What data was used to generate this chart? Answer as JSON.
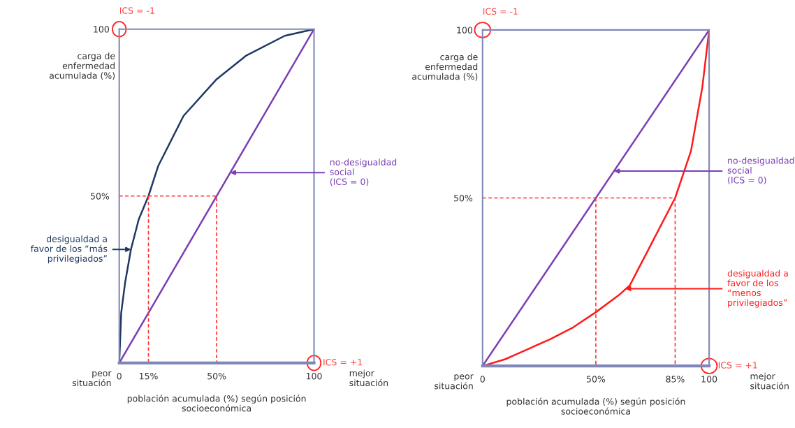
{
  "chart_data": [
    {
      "type": "line",
      "xlabel": "población acumulada (%) según posición\nsocioeconómica",
      "ylabel": "carga de\nenfermedad\nacumulada (%)",
      "xlim": [
        0,
        100
      ],
      "ylim": [
        0,
        100
      ],
      "xticks": [
        0,
        {
          "value": 15,
          "label": "15%"
        },
        {
          "value": 50,
          "label": "50%"
        },
        100
      ],
      "yticks": [
        {
          "value": 50,
          "label": "50%"
        },
        100
      ],
      "grid": false,
      "marker": "none",
      "series": [
        {
          "color": "#7b3fb5",
          "x": [
            0,
            100
          ],
          "values": [
            0,
            100
          ]
        },
        {
          "color": "#1f3864",
          "x": [
            0,
            1,
            3,
            6,
            10,
            15,
            20,
            33,
            50,
            65,
            85,
            100
          ],
          "values": [
            0,
            15,
            24,
            34,
            43,
            50,
            59,
            74,
            85,
            92,
            98,
            100
          ]
        },
        {
          "color": "#ff3333",
          "line_style": "dashed",
          "x": [
            0,
            50,
            50
          ],
          "values": [
            50,
            50,
            0
          ]
        },
        {
          "color": "#ff3333",
          "line_style": "dashed",
          "x": [
            15,
            15
          ],
          "values": [
            50,
            0
          ]
        }
      ],
      "annotations": [
        "peor situación",
        "mejor situación",
        {
          "text": "ICS = -1",
          "x": 0,
          "y": 100
        },
        {
          "text": "ICS = +1",
          "x": 100,
          "y": 0
        },
        {
          "text": "no-desigualdad\nsocial\n(ICS = 0)",
          "x": 57,
          "y": 57
        },
        {
          "text": "desigualdad a\nfavor de los “más\nprivilegiados”",
          "x": 6,
          "y": 34
        }
      ]
    },
    {
      "type": "line",
      "xlabel": "población acumulada (%) según posición\nsocioeconómica",
      "ylabel": "carga de\nenfermedad\nacumulada (%)",
      "xlim": [
        0,
        100
      ],
      "ylim": [
        0,
        100
      ],
      "xticks": [
        0,
        {
          "value": 50,
          "label": "50%"
        },
        {
          "value": 85,
          "label": "85%"
        },
        100
      ],
      "yticks": [
        {
          "value": 50,
          "label": "50%"
        },
        100
      ],
      "grid": false,
      "marker": "none",
      "series": [
        {
          "color": "#7b3fb5",
          "x": [
            0,
            100
          ],
          "values": [
            0,
            100
          ]
        },
        {
          "color": "#ff1a1a",
          "x": [
            0,
            10,
            20,
            30,
            40,
            50,
            60,
            65,
            75,
            85,
            92,
            97,
            100
          ],
          "values": [
            0,
            2,
            5,
            8,
            11.5,
            16,
            21,
            24,
            37,
            50,
            64,
            83,
            100
          ]
        },
        {
          "color": "#ff3333",
          "line_style": "dashed",
          "x": [
            0,
            85,
            85
          ],
          "values": [
            50,
            50,
            0
          ]
        },
        {
          "color": "#ff3333",
          "line_style": "dashed",
          "x": [
            50,
            50
          ],
          "values": [
            50,
            0
          ]
        }
      ],
      "annotations": [
        "peor situación",
        "mejor situación",
        {
          "text": "ICS = -1",
          "x": 0,
          "y": 100
        },
        {
          "text": "ICS = +1",
          "x": 100,
          "y": 0
        },
        {
          "text": "no-desigualdad\nsocial\n(ICS = 0)",
          "x": 58,
          "y": 58
        },
        {
          "text": "desigualdad a\nfavor de los\n“menos\nprivilegiados”",
          "x": 63,
          "y": 23
        }
      ]
    }
  ]
}
